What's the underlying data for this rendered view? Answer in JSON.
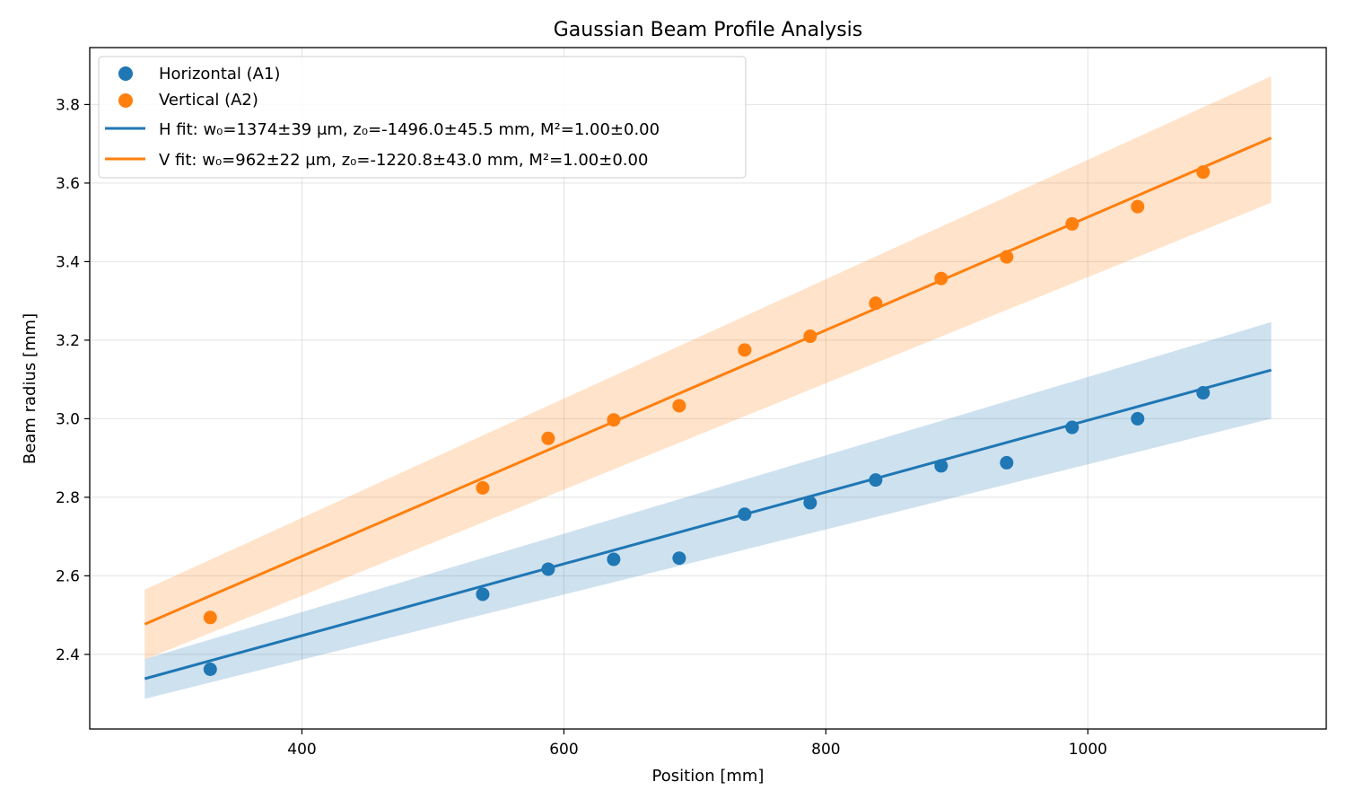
{
  "chart_data": {
    "type": "scatter",
    "title": "Gaussian Beam Profile Analysis",
    "xlabel": "Position [mm]",
    "ylabel": "Beam radius [mm]",
    "xlim": [
      238,
      1182
    ],
    "ylim": [
      2.21,
      3.945
    ],
    "xticks": [
      400,
      600,
      800,
      1000
    ],
    "yticks": [
      2.4,
      2.6,
      2.8,
      3.0,
      3.2,
      3.4,
      3.6,
      3.8
    ],
    "grid": true,
    "legend_position": "top-left",
    "series": [
      {
        "name": "Horizontal (A1)",
        "kind": "scatter",
        "color": "#1f77b4",
        "x": [
          330,
          538,
          588,
          638,
          688,
          738,
          788,
          838,
          888,
          938,
          988,
          1038,
          1088
        ],
        "y": [
          2.362,
          2.553,
          2.617,
          2.642,
          2.645,
          2.757,
          2.786,
          2.844,
          2.88,
          2.888,
          2.978,
          3.0,
          3.066
        ]
      },
      {
        "name": "Vertical (A2)",
        "kind": "scatter",
        "color": "#ff7f0e",
        "x": [
          330,
          538,
          588,
          638,
          688,
          738,
          788,
          838,
          888,
          938,
          988,
          1038,
          1088
        ],
        "y": [
          2.494,
          2.824,
          2.95,
          2.997,
          3.033,
          3.175,
          3.21,
          3.294,
          3.357,
          3.412,
          3.496,
          3.54,
          3.628
        ]
      },
      {
        "name": "H fit: w₀=1374±39 μm, z₀=-1496.0±45.5 mm, M²=1.00±0.00",
        "kind": "line",
        "color": "#1f77b4",
        "band_color": "#1f77b4",
        "x": [
          280,
          1140
        ],
        "y": [
          2.338,
          3.124
        ],
        "band_lower": [
          2.287,
          3.0
        ],
        "band_upper": [
          2.388,
          3.246
        ]
      },
      {
        "name": "V fit: w₀=962±22 μm, z₀=-1220.8±43.0 mm, M²=1.00±0.00",
        "kind": "line",
        "color": "#ff7f0e",
        "band_color": "#ff7f0e",
        "x": [
          280,
          1140
        ],
        "y": [
          2.477,
          3.715
        ],
        "band_lower": [
          2.387,
          3.55
        ],
        "band_upper": [
          2.565,
          3.872
        ]
      }
    ]
  }
}
